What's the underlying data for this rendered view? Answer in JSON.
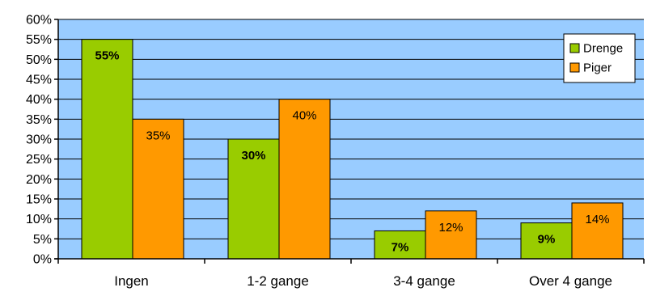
{
  "chart_data": {
    "type": "bar",
    "categories": [
      "Ingen",
      "1-2 gange",
      "3-4 gange",
      "Over 4 gange"
    ],
    "series": [
      {
        "name": "Drenge",
        "values": [
          55,
          30,
          7,
          9
        ],
        "labels": [
          "55%",
          "30%",
          "7%",
          "9%"
        ],
        "color": "#99cc00",
        "label_bold": true
      },
      {
        "name": "Piger",
        "values": [
          35,
          40,
          12,
          14
        ],
        "labels": [
          "35%",
          "40%",
          "12%",
          "14%"
        ],
        "color": "#ff9900",
        "label_bold": false
      }
    ],
    "ylim": [
      0,
      60
    ],
    "y_ticks": [
      "0%",
      "5%",
      "10%",
      "15%",
      "20%",
      "25%",
      "30%",
      "35%",
      "40%",
      "45%",
      "50%",
      "55%",
      "60%"
    ],
    "xlabel": "",
    "ylabel": "",
    "grid": true,
    "legend_position": "top-right",
    "plot_background": "#99ccff"
  }
}
